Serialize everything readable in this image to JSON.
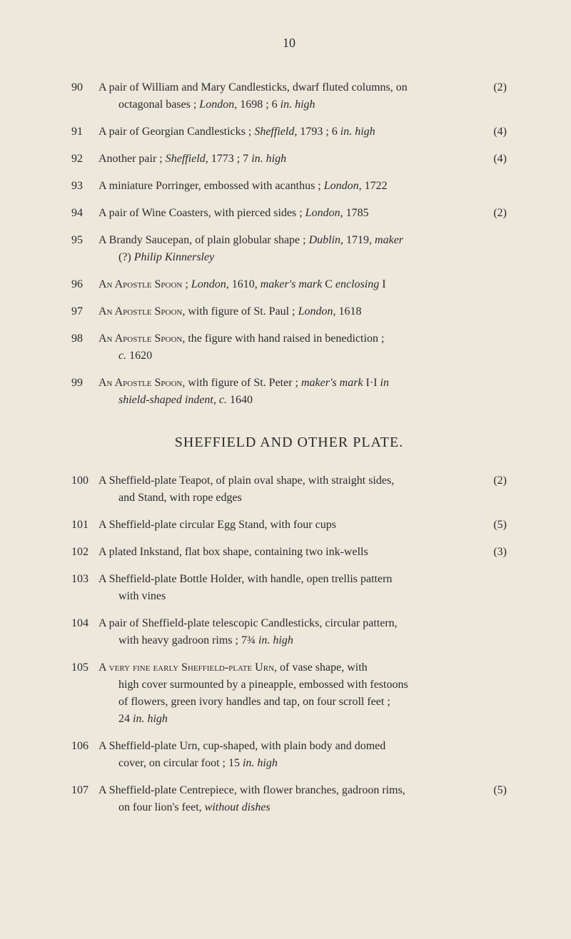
{
  "page_number": "10",
  "styling": {
    "background_color": "#ede8dc",
    "text_color": "#2a2a2a",
    "body_fontsize": 16,
    "heading_fontsize": 20,
    "pagenum_fontsize": 18,
    "line_height": 1.5,
    "font_family": "Times New Roman"
  },
  "entries_top": [
    {
      "num": "90",
      "html": "A pair of William and Mary Candlesticks, dwarf fluted columns, on<span class='indent-line'>octagonal bases ; <span class='italic'>London</span>, 1698 ; 6 <span class='italic'>in. high</span></span>",
      "count": "(2)"
    },
    {
      "num": "91",
      "html": "A pair of Georgian Candlesticks ; <span class='italic'>Sheffield</span>, 1793 ; 6 <span class='italic'>in. high</span>",
      "count": "(4)"
    },
    {
      "num": "92",
      "html": "Another pair ; <span class='italic'>Sheffield</span>, 1773 ; 7 <span class='italic'>in. high</span>",
      "count": "(4)"
    },
    {
      "num": "93",
      "html": "A miniature Porringer, embossed with acanthus ; <span class='italic'>London</span>, 1722",
      "count": ""
    },
    {
      "num": "94",
      "html": "A pair of Wine Coasters, with pierced sides ; <span class='italic'>London</span>, 1785",
      "count": "(2)"
    },
    {
      "num": "95",
      "html": "A Brandy Saucepan, of plain globular shape ; <span class='italic'>Dublin</span>, 1719, <span class='italic'>maker</span><span class='indent-line'>(?) <span class='italic'>Philip Kinnersley</span></span>",
      "count": ""
    },
    {
      "num": "96",
      "html": "<span class='smallcaps'>An Apostle Spoon</span> ; <span class='italic'>London</span>, 1610, <span class='italic'>maker's mark</span> C <span class='italic'>enclosing</span> I",
      "count": ""
    },
    {
      "num": "97",
      "html": "<span class='smallcaps'>An Apostle Spoon</span>, with figure of St. Paul ; <span class='italic'>London</span>, 1618",
      "count": ""
    },
    {
      "num": "98",
      "html": "<span class='smallcaps'>An Apostle Spoon</span>, the figure with hand raised in benediction ;<span class='indent-line'><span class='italic'>c.</span> 1620</span>",
      "count": ""
    },
    {
      "num": "99",
      "html": "<span class='smallcaps'>An Apostle Spoon</span>, with figure of St. Peter ; <span class='italic'>maker's mark</span> I·I <span class='italic'>in</span><span class='indent-line'><span class='italic'>shield-shaped indent, c.</span> 1640</span>",
      "count": ""
    }
  ],
  "section_heading": "SHEFFIELD AND OTHER PLATE.",
  "entries_bottom": [
    {
      "num": "100",
      "html": "A Sheffield-plate Teapot, of plain oval shape, with straight sides,<span class='indent-line'>and Stand, with rope edges</span>",
      "count": "(2)"
    },
    {
      "num": "101",
      "html": "A Sheffield-plate circular Egg Stand, with four cups",
      "count": "(5)"
    },
    {
      "num": "102",
      "html": "A plated Inkstand, flat box shape, containing two ink-wells",
      "count": "(3)"
    },
    {
      "num": "103",
      "html": "A Sheffield-plate Bottle Holder, with handle, open trellis pattern<span class='indent-line'>with vines</span>",
      "count": ""
    },
    {
      "num": "104",
      "html": "A pair of Sheffield-plate telescopic Candlesticks, circular pattern,<span class='indent-line'>with heavy gadroon rims ; 7¾ <span class='italic'>in. high</span></span>",
      "count": ""
    },
    {
      "num": "105",
      "html": "A <span class='smallcaps'>very fine early Sheffield-plate Urn</span>, of vase shape, with<span class='indent-line'>high cover surmounted by a pineapple, embossed with festoons</span><span class='indent-line'>of flowers, green ivory handles and tap, on four scroll feet ;</span><span class='indent-line'>24 <span class='italic'>in. high</span></span>",
      "count": ""
    },
    {
      "num": "106",
      "html": "A Sheffield-plate Urn, cup-shaped, with plain body and domed<span class='indent-line'>cover, on circular foot ; 15 <span class='italic'>in. high</span></span>",
      "count": ""
    },
    {
      "num": "107",
      "html": "A Sheffield-plate Centrepiece, with flower branches, gadroon rims,<span class='indent-line'>on four lion's feet, <span class='italic'>without dishes</span></span>",
      "count": "(5)"
    }
  ]
}
